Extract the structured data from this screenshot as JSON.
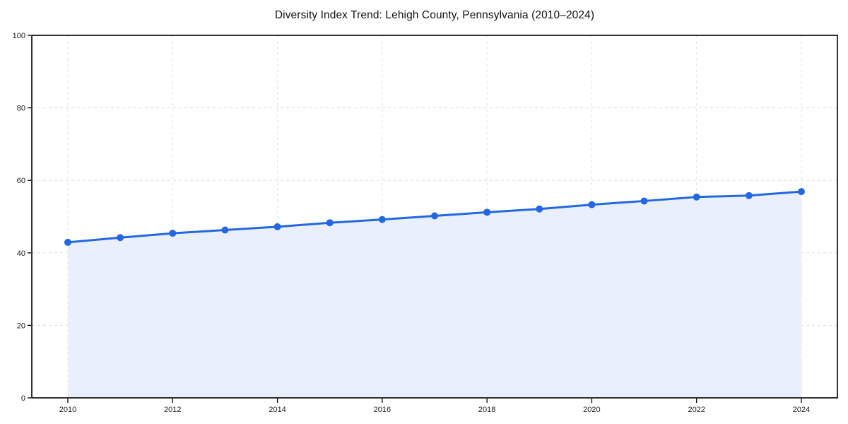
{
  "chart_data": {
    "type": "line",
    "title": "Diversity Index Trend: Lehigh County, Pennsylvania (2010–2024)",
    "x": [
      2010,
      2011,
      2012,
      2013,
      2014,
      2015,
      2016,
      2017,
      2018,
      2019,
      2020,
      2021,
      2022,
      2023,
      2024
    ],
    "series": [
      {
        "name": "Diversity Index",
        "values": [
          42.9,
          44.2,
          45.4,
          46.3,
          47.2,
          48.3,
          49.2,
          50.2,
          51.2,
          52.1,
          53.3,
          54.3,
          55.4,
          55.8,
          56.9
        ]
      }
    ],
    "xlabel": "",
    "ylabel": "",
    "ylim": [
      0,
      100
    ],
    "yticks": [
      0,
      20,
      40,
      60,
      80,
      100
    ],
    "xticks": [
      2010,
      2012,
      2014,
      2016,
      2018,
      2020,
      2022,
      2024
    ],
    "grid": true,
    "grid_style": "dashed",
    "legend_position": "none",
    "marker": "circle",
    "area_fill": true,
    "colors": {
      "line": "#2368e0",
      "marker": "#2368e0",
      "area": "#e9effb",
      "grid": "#dddddd",
      "axis_frame": "#000000",
      "text": "#1a1a1a",
      "background": "#ffffff"
    }
  }
}
